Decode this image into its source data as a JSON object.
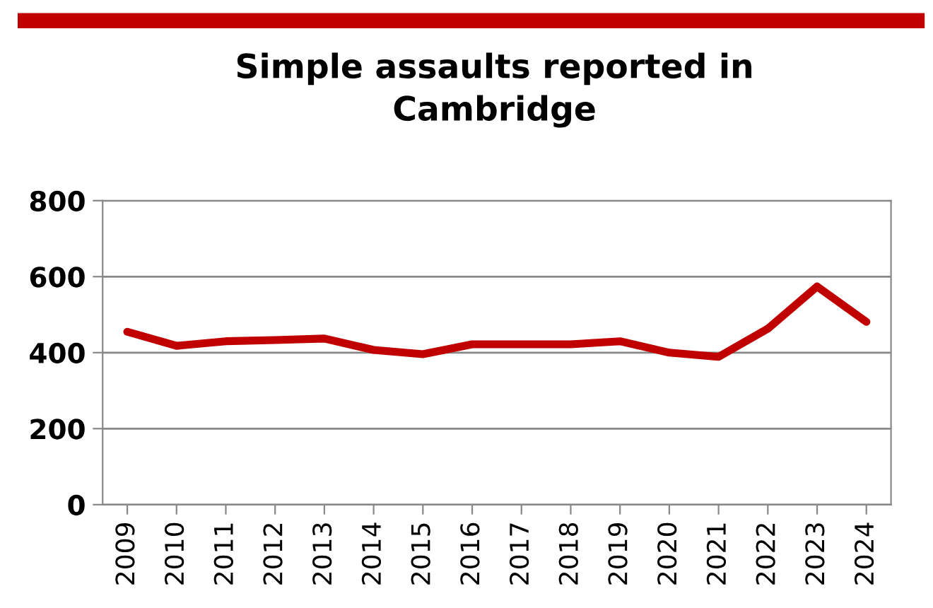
{
  "chart_data": {
    "type": "line",
    "title": "Simple assaults reported in\nCambridge",
    "categories": [
      "2009",
      "2010",
      "2011",
      "2012",
      "2013",
      "2014",
      "2015",
      "2016",
      "2017",
      "2018",
      "2019",
      "2020",
      "2021",
      "2022",
      "2023",
      "2024"
    ],
    "series": [
      {
        "color": "#c00000",
        "values": [
          455,
          418,
          430,
          433,
          437,
          407,
          396,
          422,
          422,
          422,
          430,
          400,
          389,
          463,
          574,
          481
        ]
      }
    ],
    "ylim": [
      0,
      800
    ],
    "yticks": [
      0,
      200,
      400,
      600,
      800
    ],
    "grid": "y",
    "legend": false,
    "marker": "none",
    "line_style": "solid"
  }
}
